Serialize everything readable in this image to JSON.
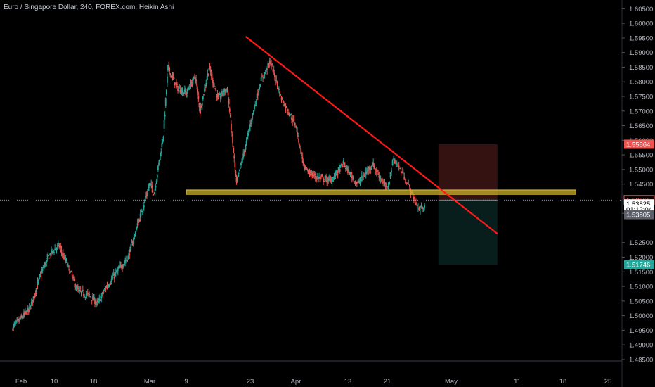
{
  "header": {
    "title": "Euro / Singapore Dollar, 240, FOREX.com, Heikin Ashi"
  },
  "colors": {
    "background": "#000000",
    "up": "#26a69a",
    "down": "#ef5350",
    "trendline": "#ff1a1a",
    "zone": "#c9b02a",
    "stop": "#ef5350",
    "target": "#26a69a",
    "axis_text": "#b2b5be"
  },
  "price_axis": {
    "labels": [
      "1.60500",
      "1.60000",
      "1.59500",
      "1.59000",
      "1.58500",
      "1.58000",
      "1.57500",
      "1.57000",
      "1.56500",
      "1.56000",
      "1.55500",
      "1.55000",
      "1.54500",
      "1.53500",
      "1.52500",
      "1.52000",
      "1.51500",
      "1.51000",
      "1.50500",
      "1.50000",
      "1.49500",
      "1.49000",
      "1.48500"
    ],
    "tags": [
      {
        "label": "1.55864",
        "kind": "stop"
      },
      {
        "label": "1.53955",
        "kind": "close"
      },
      {
        "label": "1.53825",
        "kind": "last"
      },
      {
        "label": "01:12:04",
        "kind": "countdown"
      },
      {
        "label": "1.53805",
        "kind": "grey"
      },
      {
        "label": "1.51746",
        "kind": "target"
      }
    ]
  },
  "time_axis": {
    "labels": [
      "Feb",
      "10",
      "18",
      "Mar",
      "9",
      "23",
      "Apr",
      "13",
      "21",
      "May",
      "11",
      "18",
      "25"
    ]
  },
  "chart_data": {
    "type": "candlestick",
    "style": "Heikin Ashi",
    "title": "Euro / Singapore Dollar, 240, FOREX.com, Heikin Ashi",
    "ylim": [
      1.4845,
      1.6075
    ],
    "xlabels": [
      "Feb",
      "10",
      "18",
      "Mar",
      "9",
      "23",
      "Apr",
      "13",
      "21",
      "May",
      "11",
      "18",
      "25"
    ],
    "close_path": [
      [
        "Jan 30",
        1.496
      ],
      [
        "Feb 3",
        1.502
      ],
      [
        "Feb 6",
        1.515
      ],
      [
        "Feb 8",
        1.521
      ],
      [
        "Feb 10",
        1.524
      ],
      [
        "Feb 12",
        1.516
      ],
      [
        "Feb 14",
        1.508
      ],
      [
        "Feb 16",
        1.507
      ],
      [
        "Feb 18",
        1.504
      ],
      [
        "Feb 20",
        1.51
      ],
      [
        "Feb 23",
        1.516
      ],
      [
        "Feb 25",
        1.52
      ],
      [
        "Feb 27",
        1.53
      ],
      [
        "Mar 1",
        1.545
      ],
      [
        "Mar 2",
        1.542
      ],
      [
        "Mar 4",
        1.562
      ],
      [
        "Mar 5",
        1.585
      ],
      [
        "Mar 7",
        1.578
      ],
      [
        "Mar 9",
        1.576
      ],
      [
        "Mar 11",
        1.582
      ],
      [
        "Mar 12",
        1.57
      ],
      [
        "Mar 14",
        1.585
      ],
      [
        "Mar 16",
        1.574
      ],
      [
        "Mar 18",
        1.578
      ],
      [
        "Mar 20",
        1.545
      ],
      [
        "Mar 22",
        1.558
      ],
      [
        "Mar 25",
        1.58
      ],
      [
        "Mar 27",
        1.587
      ],
      [
        "Mar 29",
        1.575
      ],
      [
        "Apr 1",
        1.565
      ],
      [
        "Apr 3",
        1.55
      ],
      [
        "Apr 5",
        1.548
      ],
      [
        "Apr 9",
        1.546
      ],
      [
        "Apr 12",
        1.552
      ],
      [
        "Apr 15",
        1.545
      ],
      [
        "Apr 18",
        1.552
      ],
      [
        "Apr 21",
        1.543
      ],
      [
        "Apr 22",
        1.554
      ],
      [
        "Apr 24",
        1.546
      ],
      [
        "Apr 26",
        1.536
      ],
      [
        "Apr 27",
        1.5385
      ]
    ],
    "annotations": {
      "trendline": {
        "from": [
          "Mar 22",
          1.5955
        ],
        "to": [
          "May 8",
          1.528
        ]
      },
      "horizontal_zone": {
        "from": "Mar 9",
        "to": "May 20",
        "low": 1.5415,
        "high": 1.543
      },
      "short_position": {
        "start": "Apr 29",
        "end": "May 8",
        "entry": 1.53955,
        "stop": 1.55864,
        "target": 1.51746
      },
      "current_price_line": 1.53955
    }
  }
}
